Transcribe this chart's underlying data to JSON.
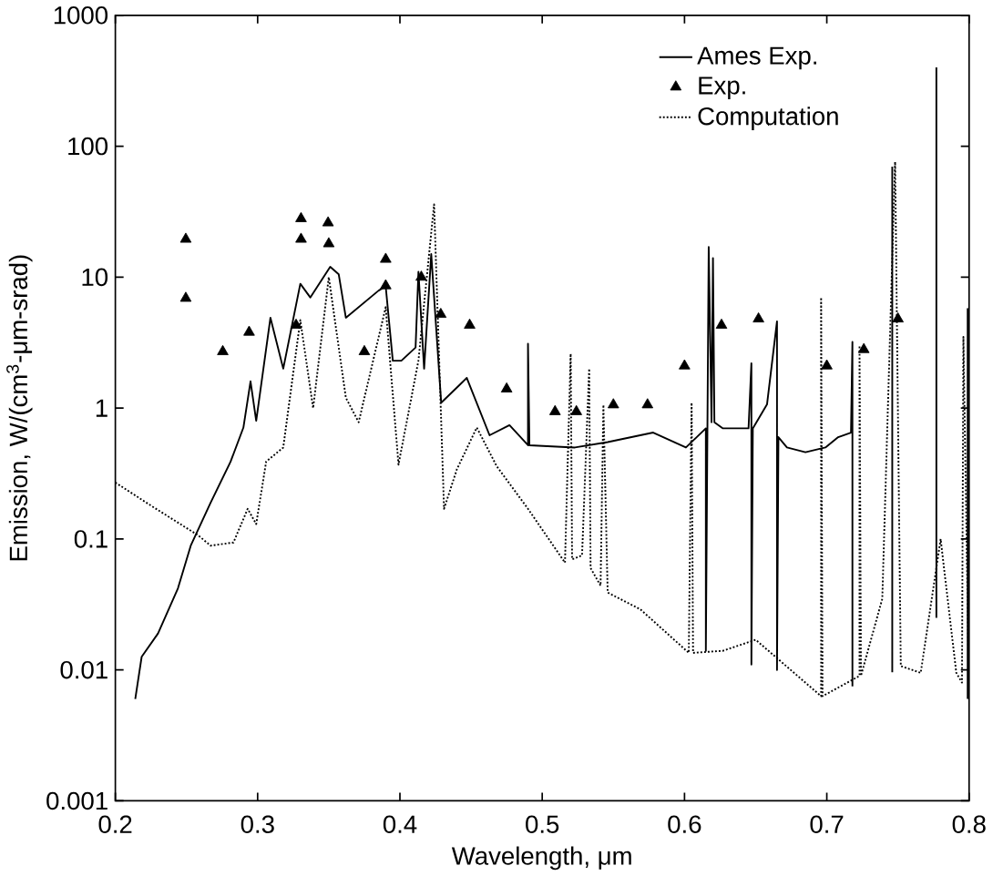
{
  "chart_data": {
    "type": "line",
    "xlabel": "Wavelength, μm",
    "ylabel": "Emission, W/(cm$^{3}$-μm-srad)",
    "log": "y",
    "xlim": [
      0.2,
      0.8
    ],
    "ylim": [
      0.001,
      1000
    ],
    "xticks": [
      0.2,
      0.3,
      0.4,
      0.5,
      0.6,
      0.7,
      0.8
    ],
    "yticks": [
      0.001,
      0.01,
      0.1,
      1,
      10,
      100,
      1000
    ],
    "legend": "top right",
    "grid": false,
    "series": [
      {
        "name": "Ames Exp.",
        "color": "#000000",
        "marker": "none",
        "line_style": "solid",
        "x": [
          0.214,
          0.2185,
          0.23,
          0.244,
          0.253,
          0.267,
          0.281,
          0.29,
          0.295,
          0.299,
          0.309,
          0.318,
          0.33,
          0.337,
          0.351,
          0.357,
          0.362,
          0.385,
          0.39,
          0.395,
          0.401,
          0.411,
          0.413,
          0.417,
          0.422,
          0.429,
          0.447,
          0.463,
          0.477,
          0.49,
          0.49,
          0.491,
          0.523,
          0.546,
          0.578,
          0.601,
          0.615,
          0.615,
          0.617,
          0.619,
          0.62,
          0.621,
          0.627,
          0.645,
          0.647,
          0.647,
          0.648,
          0.658,
          0.665,
          0.665,
          0.666,
          0.672,
          0.685,
          0.699,
          0.708,
          0.717,
          0.718,
          0.718,
          0.73,
          0.746,
          0.746,
          0.76,
          0.777,
          0.777,
          0.79,
          0.799,
          0.799
        ],
        "values": [
          0.006,
          0.0126,
          0.019,
          0.042,
          0.089,
          0.19,
          0.39,
          0.71,
          1.6,
          0.8,
          4.9,
          2.0,
          8.9,
          7,
          12,
          10.5,
          4.9,
          7.9,
          8.5,
          2.3,
          2.3,
          2.9,
          11,
          2,
          15,
          1.1,
          1.7,
          0.62,
          0.74,
          0.52,
          3.1,
          0.52,
          0.5,
          0.55,
          0.65,
          0.5,
          0.7,
          0.014,
          17,
          0.78,
          14,
          0.78,
          0.7,
          0.7,
          2.2,
          0.011,
          0.7,
          1.07,
          4.6,
          0.01,
          0.6,
          0.5,
          0.46,
          0.5,
          0.6,
          0.65,
          3.2,
          0.0075,
          null,
          0.0096,
          70,
          null,
          0.025,
          400,
          null,
          0.006,
          5.8
        ]
      },
      {
        "name": "Exp.",
        "type": "scatter",
        "color": "#000000",
        "marker": "triangle",
        "x": [
          0.2495,
          0.2495,
          0.2755,
          0.294,
          0.3305,
          0.3305,
          0.327,
          0.3495,
          0.35,
          0.39,
          0.39,
          0.375,
          0.415,
          0.4287,
          0.449,
          0.475,
          0.509,
          0.524,
          0.55,
          0.574,
          0.6,
          0.626,
          0.652,
          0.7,
          0.726,
          0.75
        ],
        "values": [
          19.5,
          6.9,
          2.7,
          3.8,
          28,
          19.5,
          4.3,
          26,
          18,
          13.7,
          8.6,
          2.7,
          10,
          5.2,
          4.3,
          1.4,
          0.94,
          0.94,
          1.06,
          1.06,
          2.1,
          4.3,
          4.8,
          2.1,
          2.8,
          4.8
        ]
      },
      {
        "name": "Computation",
        "color": "#000000",
        "marker": "none",
        "line_style": "dotted",
        "x": [
          0.2,
          0.225,
          0.258,
          0.267,
          0.283,
          0.293,
          0.299,
          0.306,
          0.318,
          0.33,
          0.339,
          0.35,
          0.362,
          0.371,
          0.39,
          0.399,
          0.413,
          0.424,
          0.431,
          0.44,
          0.454,
          0.468,
          0.49,
          0.516,
          0.52,
          0.521,
          0.528,
          0.533,
          0.534,
          0.541,
          0.543,
          0.546,
          0.569,
          0.603,
          0.605,
          0.606,
          0.627,
          0.65,
          0.696,
          0.696,
          0.697,
          0.723,
          0.723,
          0.724,
          0.739,
          0.748,
          0.752,
          0.766,
          0.78,
          0.791,
          0.795,
          0.796,
          0.8
        ],
        "values": [
          0.27,
          0.18,
          0.107,
          0.089,
          0.094,
          0.17,
          0.13,
          0.39,
          0.5,
          4.7,
          1.0,
          10,
          1.2,
          0.78,
          5.9,
          0.37,
          2.3,
          36,
          0.17,
          0.34,
          0.71,
          0.36,
          0.17,
          0.066,
          2.6,
          0.07,
          0.075,
          2.0,
          0.06,
          0.044,
          1.06,
          0.039,
          0.029,
          0.0135,
          1.1,
          0.0135,
          0.014,
          0.017,
          0.0063,
          7,
          0.0063,
          0.009,
          3,
          0.009,
          0.035,
          76,
          0.0107,
          0.0095,
          0.1,
          0.0095,
          0.008,
          3.5,
          0.006
        ]
      }
    ]
  }
}
